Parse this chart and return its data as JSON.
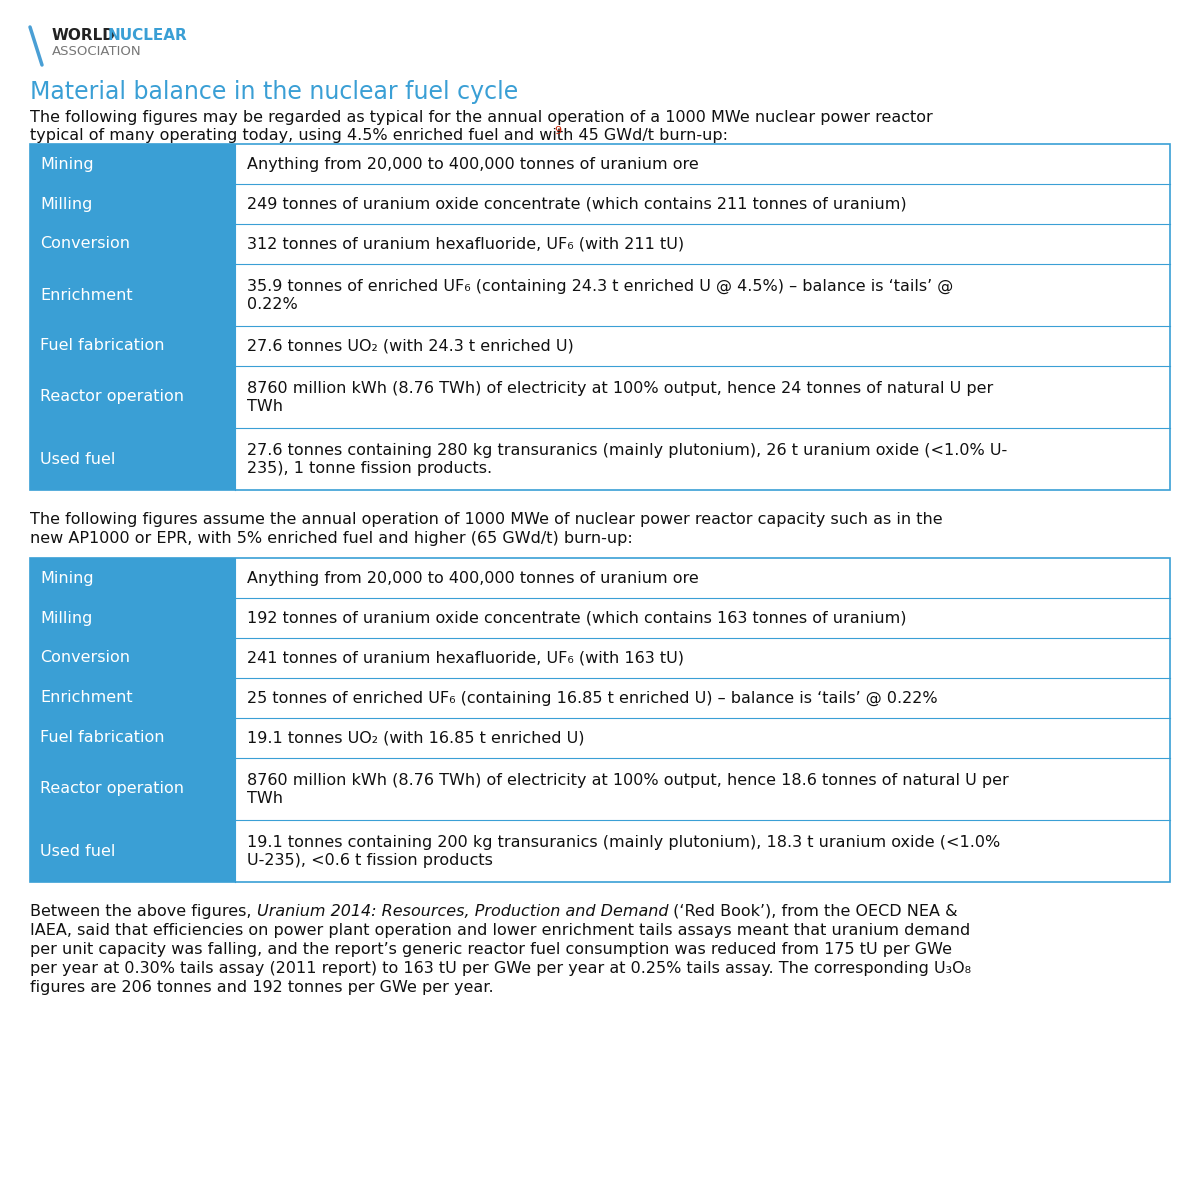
{
  "bg_color": "#ffffff",
  "title_color": "#3a9fd5",
  "header_bg": "#3a9fd5",
  "header_text_color": "#ffffff",
  "cell_bg": "#ffffff",
  "cell_text_color": "#333333",
  "border_color": "#3a9fd5",
  "logo_world_color": "#222222",
  "logo_nuclear_color": "#3a9fd5",
  "logo_assoc_color": "#777777",
  "slash_color": "#4a9fd5",
  "main_title": "Material balance in the nuclear fuel cycle",
  "intro1_line1": "The following figures may be regarded as typical for the annual operation of a 1000 MWe nuclear power reactor",
  "intro1_line2": "typical of many operating today, using 4.5% enriched fuel and with 45 GWd/t burn-up:",
  "table1": [
    [
      "Mining",
      "Anything from 20,000 to 400,000 tonnes of uranium ore",
      1
    ],
    [
      "Milling",
      "249 tonnes of uranium oxide concentrate (which contains 211 tonnes of uranium)",
      1
    ],
    [
      "Conversion",
      "312 tonnes of uranium hexafluoride, UF₆ (with 211 tU)",
      1
    ],
    [
      "Enrichment",
      "35.9 tonnes of enriched UF₆ (containing 24.3 t enriched U @ 4.5%) – balance is ‘tails’ @|0.22%",
      2
    ],
    [
      "Fuel fabrication",
      "27.6 tonnes UO₂ (with 24.3 t enriched U)",
      1
    ],
    [
      "Reactor operation",
      "8760 million kWh (8.76 TWh) of electricity at 100% output, hence 24 tonnes of natural U per|TWh",
      2
    ],
    [
      "Used fuel",
      "27.6 tonnes containing 280 kg transuranics (mainly plutonium), 26 t uranium oxide (<1.0% U-|235), 1 tonne fission products.",
      2
    ]
  ],
  "intro2_line1": "The following figures assume the annual operation of 1000 MWe of nuclear power reactor capacity such as in the",
  "intro2_line2": "new AP1000 or EPR, with 5% enriched fuel and higher (65 GWd/t) burn-up:",
  "table2": [
    [
      "Mining",
      "Anything from 20,000 to 400,000 tonnes of uranium ore",
      1
    ],
    [
      "Milling",
      "192 tonnes of uranium oxide concentrate (which contains 163 tonnes of uranium)",
      1
    ],
    [
      "Conversion",
      "241 tonnes of uranium hexafluoride, UF₆ (with 163 tU)",
      1
    ],
    [
      "Enrichment",
      "25 tonnes of enriched UF₆ (containing 16.85 t enriched U) – balance is ‘tails’ @ 0.22%",
      1
    ],
    [
      "Fuel fabrication",
      "19.1 tonnes UO₂ (with 16.85 t enriched U)",
      1
    ],
    [
      "Reactor operation",
      "8760 million kWh (8.76 TWh) of electricity at 100% output, hence 18.6 tonnes of natural U per|TWh",
      2
    ],
    [
      "Used fuel",
      "19.1 tonnes containing 200 kg transuranics (mainly plutonium), 18.3 t uranium oxide (<1.0%|U-235), <0.6 t fission products",
      2
    ]
  ],
  "footer_pre": "Between the above figures, ",
  "footer_italic": "Uranium 2014: Resources, Production and Demand",
  "footer_post": " (‘Red Book’), from the OECD NEA &",
  "footer_lines": [
    "IAEA, said that efficiencies on power plant operation and lower enrichment tails assays meant that uranium demand",
    "per unit capacity was falling, and the report’s generic reactor fuel consumption was reduced from 175 tU per GWe",
    "per year at 0.30% tails assay (2011 report) to 163 tU per GWe per year at 0.25% tails assay. The corresponding U₃O₈",
    "figures are 206 tonnes and 192 tonnes per GWe per year."
  ]
}
